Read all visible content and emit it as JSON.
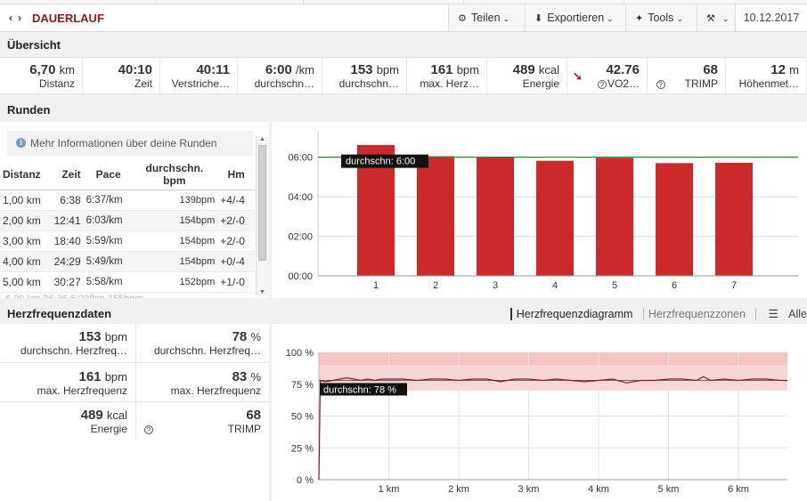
{
  "header": {
    "nav_prev": "‹",
    "nav_next": "›",
    "title": "DAUERLAUF",
    "share_label": "Teilen",
    "export_label": "Exportieren",
    "tools_label": "Tools",
    "date": "10.12.2017"
  },
  "overview": {
    "title": "Übersicht",
    "metrics": [
      {
        "value": "6,70",
        "unit": "km",
        "label": "Distanz"
      },
      {
        "value": "40:10",
        "unit": "",
        "label": "Zeit"
      },
      {
        "value": "40:11",
        "unit": "",
        "label": "Verstriche…"
      },
      {
        "value": "6:00",
        "unit": "/km",
        "label": "durchschn…"
      },
      {
        "value": "153",
        "unit": "bpm",
        "label": "durchschn…"
      },
      {
        "value": "161",
        "unit": "bpm",
        "label": "max. Herz…"
      },
      {
        "value": "489",
        "unit": "kcal",
        "label": "Energie"
      },
      {
        "value": "42.76",
        "unit": "",
        "label": "VO2…"
      },
      {
        "value": "68",
        "unit": "",
        "label": "TRIMP"
      },
      {
        "value": "12",
        "unit": "m",
        "label": "Höhenmet…"
      }
    ]
  },
  "laps": {
    "title": "Runden",
    "info": "Mehr Informationen über deine Runden",
    "columns": [
      "Distanz",
      "Zeit",
      "Pace",
      "durchschn. bpm",
      "Hm"
    ],
    "rows": [
      {
        "dist": "1,00 km",
        "time": "6:38",
        "pace": "6:37/km",
        "bpm": "139bpm",
        "hm": "+4/-4"
      },
      {
        "dist": "2,00 km",
        "time": "12:41",
        "pace": "6:03/km",
        "bpm": "154bpm",
        "hm": "+2/-0"
      },
      {
        "dist": "3,00 km",
        "time": "18:40",
        "pace": "5:59/km",
        "bpm": "154bpm",
        "hm": "+2/-0"
      },
      {
        "dist": "4,00 km",
        "time": "24:29",
        "pace": "5:49/km",
        "bpm": "154bpm",
        "hm": "+0/-4"
      },
      {
        "dist": "5,00 km",
        "time": "30:27",
        "pace": "5:58/km",
        "bpm": "152bpm",
        "hm": "+1/-0"
      }
    ],
    "chart_tooltip": "durchschn: 6:00"
  },
  "hr": {
    "title": "Herzfrequenzdaten",
    "tab_diagram": "Herzfrequenzdiagramm",
    "tab_zones": "Herzfrequenzzonen",
    "tab_all": "Alle",
    "cells": [
      {
        "value": "153",
        "unit": "bpm",
        "label": "durchschn. Herzfreq…"
      },
      {
        "value": "78",
        "unit": "%",
        "label": "durchschn. Herzfreq…"
      },
      {
        "value": "161",
        "unit": "bpm",
        "label": "max. Herzfrequenz"
      },
      {
        "value": "83",
        "unit": "%",
        "label": "max. Herzfrequenz"
      },
      {
        "value": "489",
        "unit": "kcal",
        "label": "Energie"
      },
      {
        "value": "68",
        "unit": "",
        "label": "TRIMP"
      }
    ],
    "chart_tooltip": "durchschn: 78 %"
  },
  "chart_data": [
    {
      "type": "bar",
      "categories": [
        "1",
        "2",
        "3",
        "4",
        "5",
        "6",
        "7"
      ],
      "values_seconds": [
        397,
        363,
        359,
        349,
        358,
        342,
        343
      ],
      "yticks": [
        "00:00",
        "02:00",
        "04:00",
        "06:00"
      ],
      "ylim_seconds": [
        0,
        440
      ],
      "reference_line_seconds": 360,
      "bar_color": "#cc2a2a"
    },
    {
      "type": "line",
      "x_km": [
        0,
        0.02,
        0.1,
        0.2,
        0.3,
        0.4,
        0.5,
        0.6,
        0.7,
        0.8,
        0.9,
        1.0,
        1.2,
        1.4,
        1.6,
        1.8,
        2.0,
        2.2,
        2.4,
        2.6,
        2.8,
        3.0,
        3.2,
        3.4,
        3.6,
        3.8,
        4.0,
        4.2,
        4.4,
        4.6,
        4.8,
        5.0,
        5.2,
        5.4,
        5.5,
        5.6,
        5.8,
        6.0,
        6.2,
        6.4,
        6.6,
        6.7
      ],
      "y_percent": [
        0,
        78,
        77,
        78,
        79,
        80,
        79,
        78,
        79,
        78,
        79,
        79,
        79,
        78,
        79,
        79,
        78,
        79,
        79,
        77,
        79,
        79,
        78,
        79,
        78,
        77,
        78,
        79,
        76,
        78,
        78,
        79,
        79,
        78,
        81,
        78,
        79,
        78,
        79,
        79,
        78,
        78
      ],
      "yticks": [
        "0 %",
        "25 %",
        "50 %",
        "75 %",
        "100 %"
      ],
      "xticks": [
        "1 km",
        "2 km",
        "3 km",
        "4 km",
        "5 km",
        "6 km"
      ],
      "ylim": [
        0,
        100
      ],
      "xlim": [
        0,
        6.7
      ],
      "reference_line": 78,
      "zone_band": [
        70,
        100
      ],
      "line_color": "#8b1a1a"
    }
  ]
}
